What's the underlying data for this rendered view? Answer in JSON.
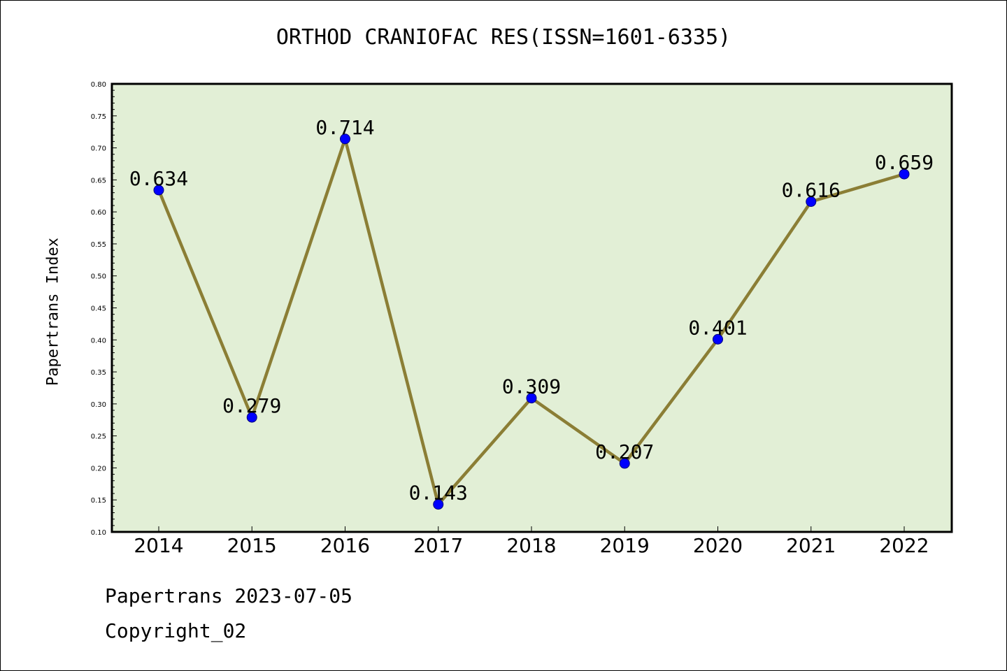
{
  "footer": {
    "source_line": "Papertrans 2023-07-05",
    "copyright_line": "Copyright_02"
  },
  "chart_data": {
    "type": "line",
    "title": "ORTHOD CRANIOFAC RES(ISSN=1601-6335)",
    "xlabel": "",
    "ylabel": "Papertrans Index",
    "categories": [
      "2014",
      "2015",
      "2016",
      "2017",
      "2018",
      "2019",
      "2020",
      "2021",
      "2022"
    ],
    "series": [
      {
        "values": [
          0.634,
          0.279,
          0.714,
          0.143,
          0.309,
          0.207,
          0.401,
          0.616,
          0.659
        ],
        "data_labels": [
          "0.634",
          "0.279",
          "0.714",
          "0.143",
          "0.309",
          "0.207",
          "0.401",
          "0.616",
          "0.659"
        ]
      }
    ],
    "ylim": [
      0.1,
      0.8
    ],
    "yticks": [
      "0.10",
      "0.15",
      "0.20",
      "0.25",
      "0.30",
      "0.35",
      "0.40",
      "0.45",
      "0.50",
      "0.55",
      "0.60",
      "0.65",
      "0.70",
      "0.75",
      "0.80"
    ],
    "grid": false,
    "legend": "none",
    "colors": {
      "plot_background": "#e2efd6",
      "line": "#8b7e35",
      "marker": "#0000ff",
      "axes": "#000000"
    }
  }
}
